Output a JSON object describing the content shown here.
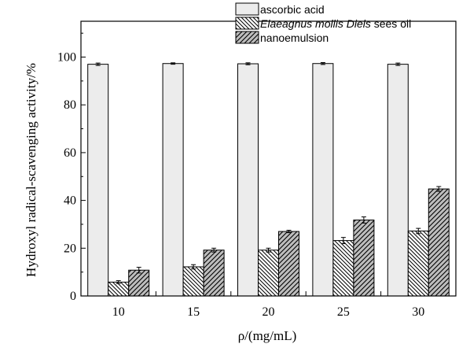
{
  "chart_data": {
    "type": "bar",
    "categories": [
      "10",
      "15",
      "20",
      "25",
      "30"
    ],
    "ylim": [
      0,
      115
    ],
    "yticks": [
      0,
      20,
      40,
      60,
      80,
      100
    ],
    "ylabel": "Hydroxyl radical-scavenging activity/%",
    "xlabel": "ρ/(mg/mL)",
    "legend_position": "top-right",
    "series": [
      {
        "name": "ascorbic acid",
        "pattern": "light-gray-solid",
        "values": [
          97.0,
          97.3,
          97.2,
          97.3,
          97.0
        ],
        "errors": [
          0.5,
          0.3,
          0.4,
          0.4,
          0.5
        ]
      },
      {
        "name": "Elaeagnus mollis Diels sees oil",
        "name_italic": "Elaeagnus mollis Diels",
        "name_rest": " sees oil",
        "pattern": "backslash-hatch-white",
        "values": [
          5.8,
          12.2,
          19.2,
          23.2,
          27.2
        ],
        "errors": [
          0.6,
          0.9,
          0.8,
          1.3,
          1.1
        ]
      },
      {
        "name": "nanoemulsion",
        "pattern": "slash-hatch-gray",
        "values": [
          10.8,
          19.2,
          27.0,
          31.8,
          44.8
        ],
        "errors": [
          1.2,
          0.8,
          0.5,
          1.3,
          1.0
        ]
      }
    ]
  }
}
